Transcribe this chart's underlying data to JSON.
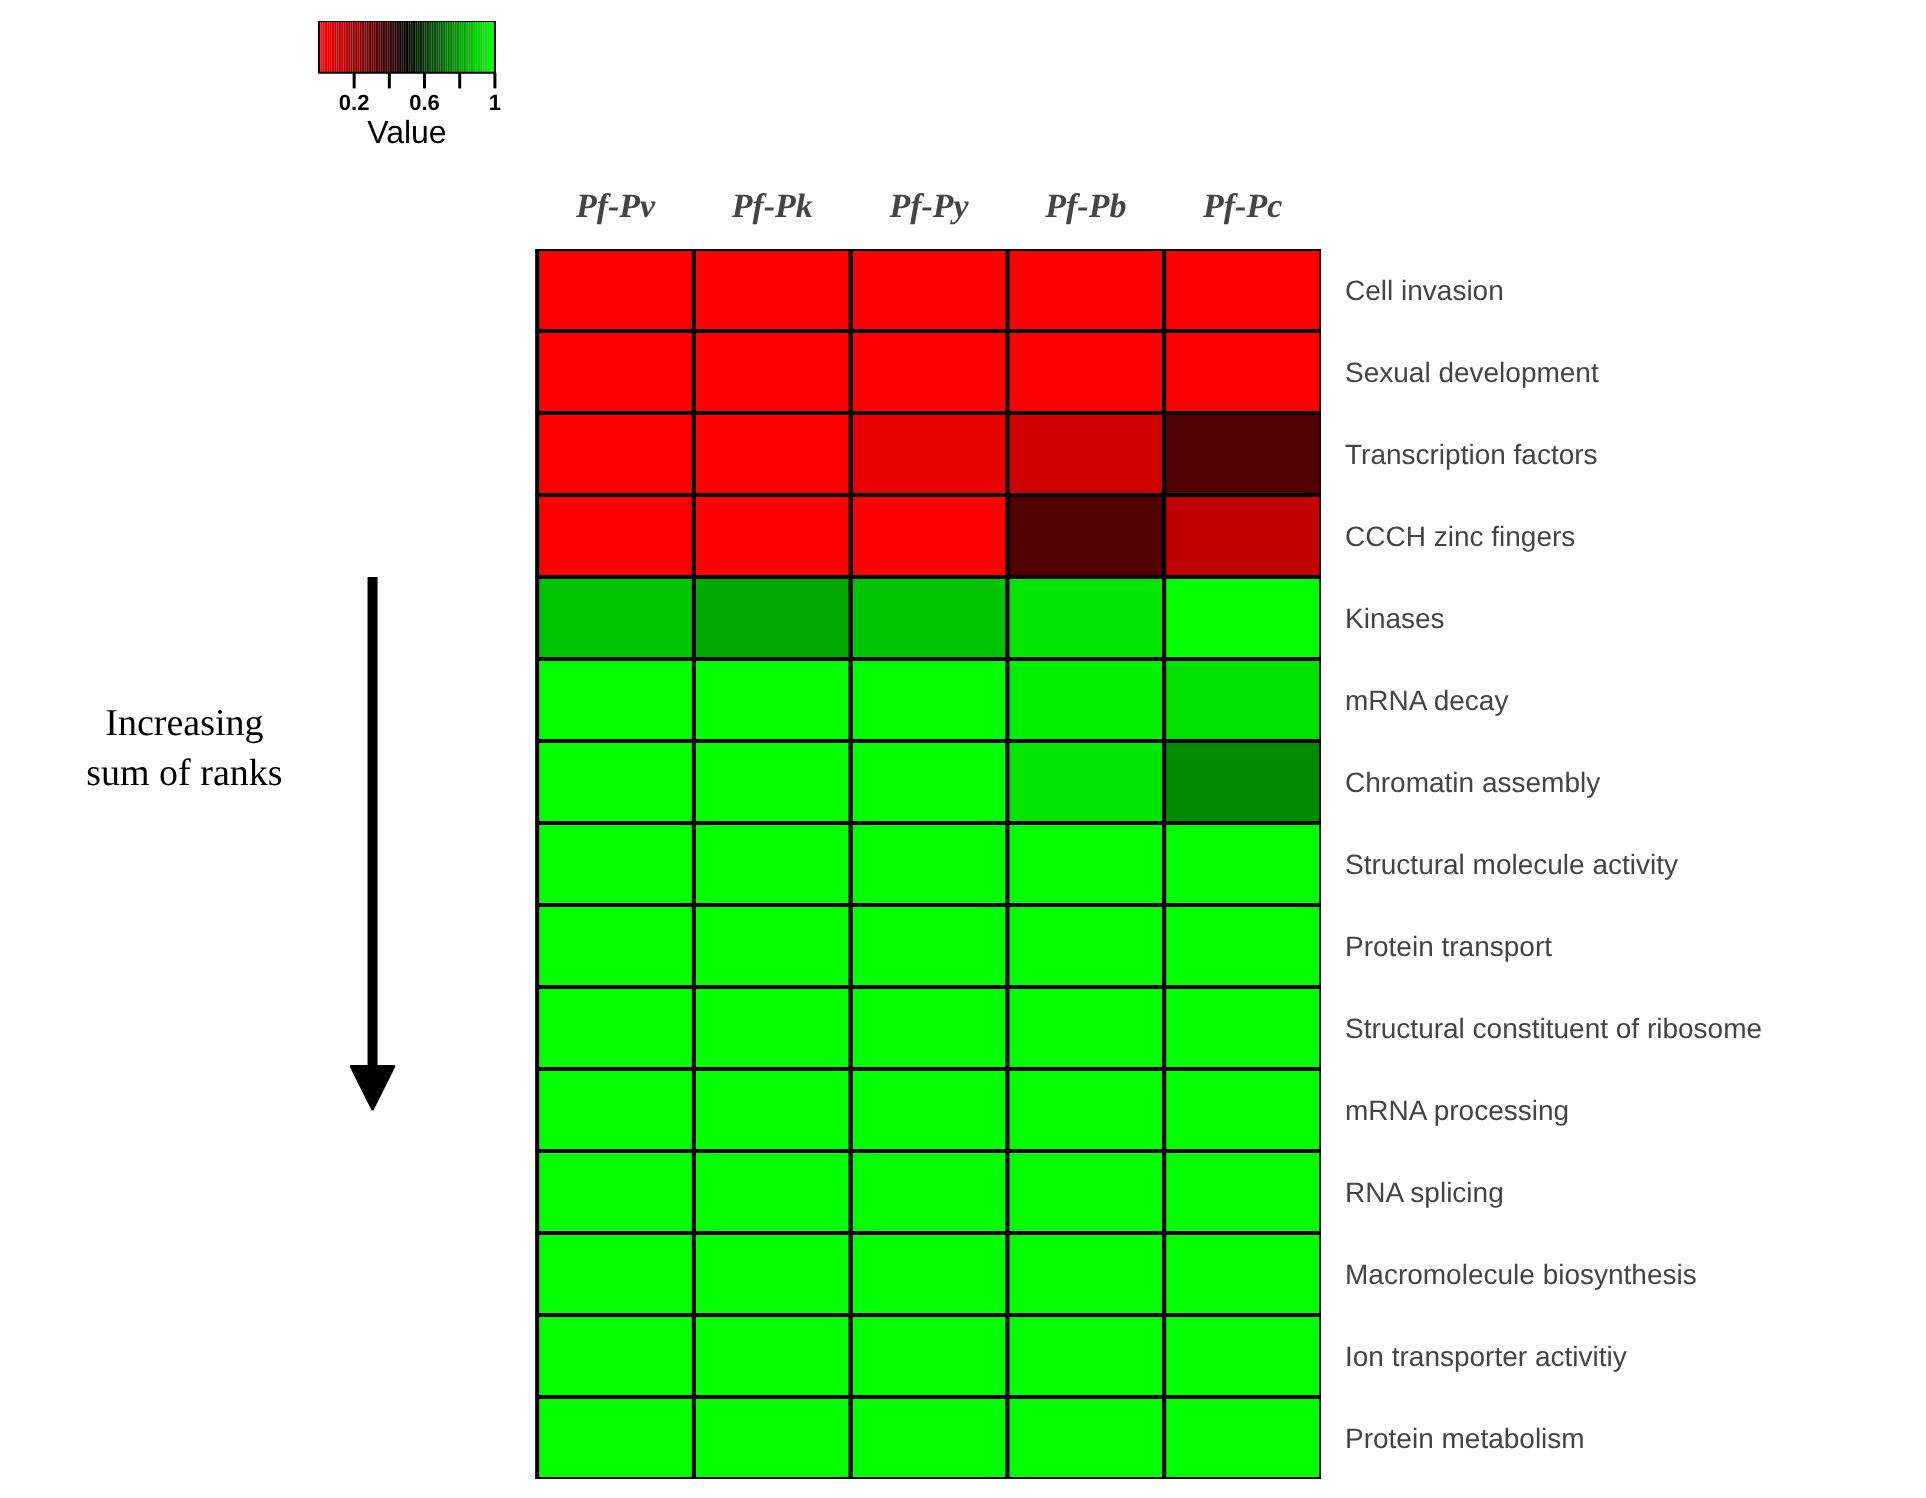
{
  "chart_data": {
    "type": "heatmap",
    "categories": [
      "Pf-Pv",
      "Pf-Pk",
      "Pf-Py",
      "Pf-Pb",
      "Pf-Pc"
    ],
    "y_categories": [
      "Cell invasion",
      "Sexual development",
      "Transcription factors",
      "CCCH zinc fingers",
      "Kinases",
      "mRNA decay",
      "Chromatin assembly",
      "Structural molecule activity",
      "Protein transport",
      "Structural constituent of ribosome",
      "mRNA processing",
      "RNA splicing",
      "Macromolecule biosynthesis",
      "Ion transporter activitiy",
      "Protein metabolism"
    ],
    "cells": [
      [
        0,
        0,
        0,
        0,
        0
      ],
      [
        0,
        0,
        0,
        0,
        0
      ],
      [
        0,
        0,
        0.05,
        0.09,
        0.34
      ],
      [
        0,
        0,
        0,
        0.34,
        0.12
      ],
      [
        0.88,
        0.83,
        0.88,
        0.95,
        1
      ],
      [
        1,
        1,
        1,
        0.97,
        0.94
      ],
      [
        1,
        1,
        1,
        0.95,
        0.77
      ],
      [
        1,
        1,
        1,
        1,
        1
      ],
      [
        1,
        1,
        1,
        1,
        1
      ],
      [
        1,
        1,
        1,
        1,
        1
      ],
      [
        1,
        1,
        1,
        1,
        1
      ],
      [
        1,
        1,
        1,
        1,
        1
      ],
      [
        1,
        1,
        1,
        1,
        1
      ],
      [
        1,
        1,
        1,
        1,
        1
      ],
      [
        1,
        1,
        1,
        1,
        1
      ]
    ],
    "clim": [
      0,
      1
    ],
    "cticks": [
      0.2,
      {
        "value": 0.4,
        "label": null
      },
      0.6,
      {
        "value": 0.8,
        "label": null
      },
      1
    ],
    "clabel": "Value",
    "annotations": [
      "Increasing\nsum of ranks"
    ]
  }
}
